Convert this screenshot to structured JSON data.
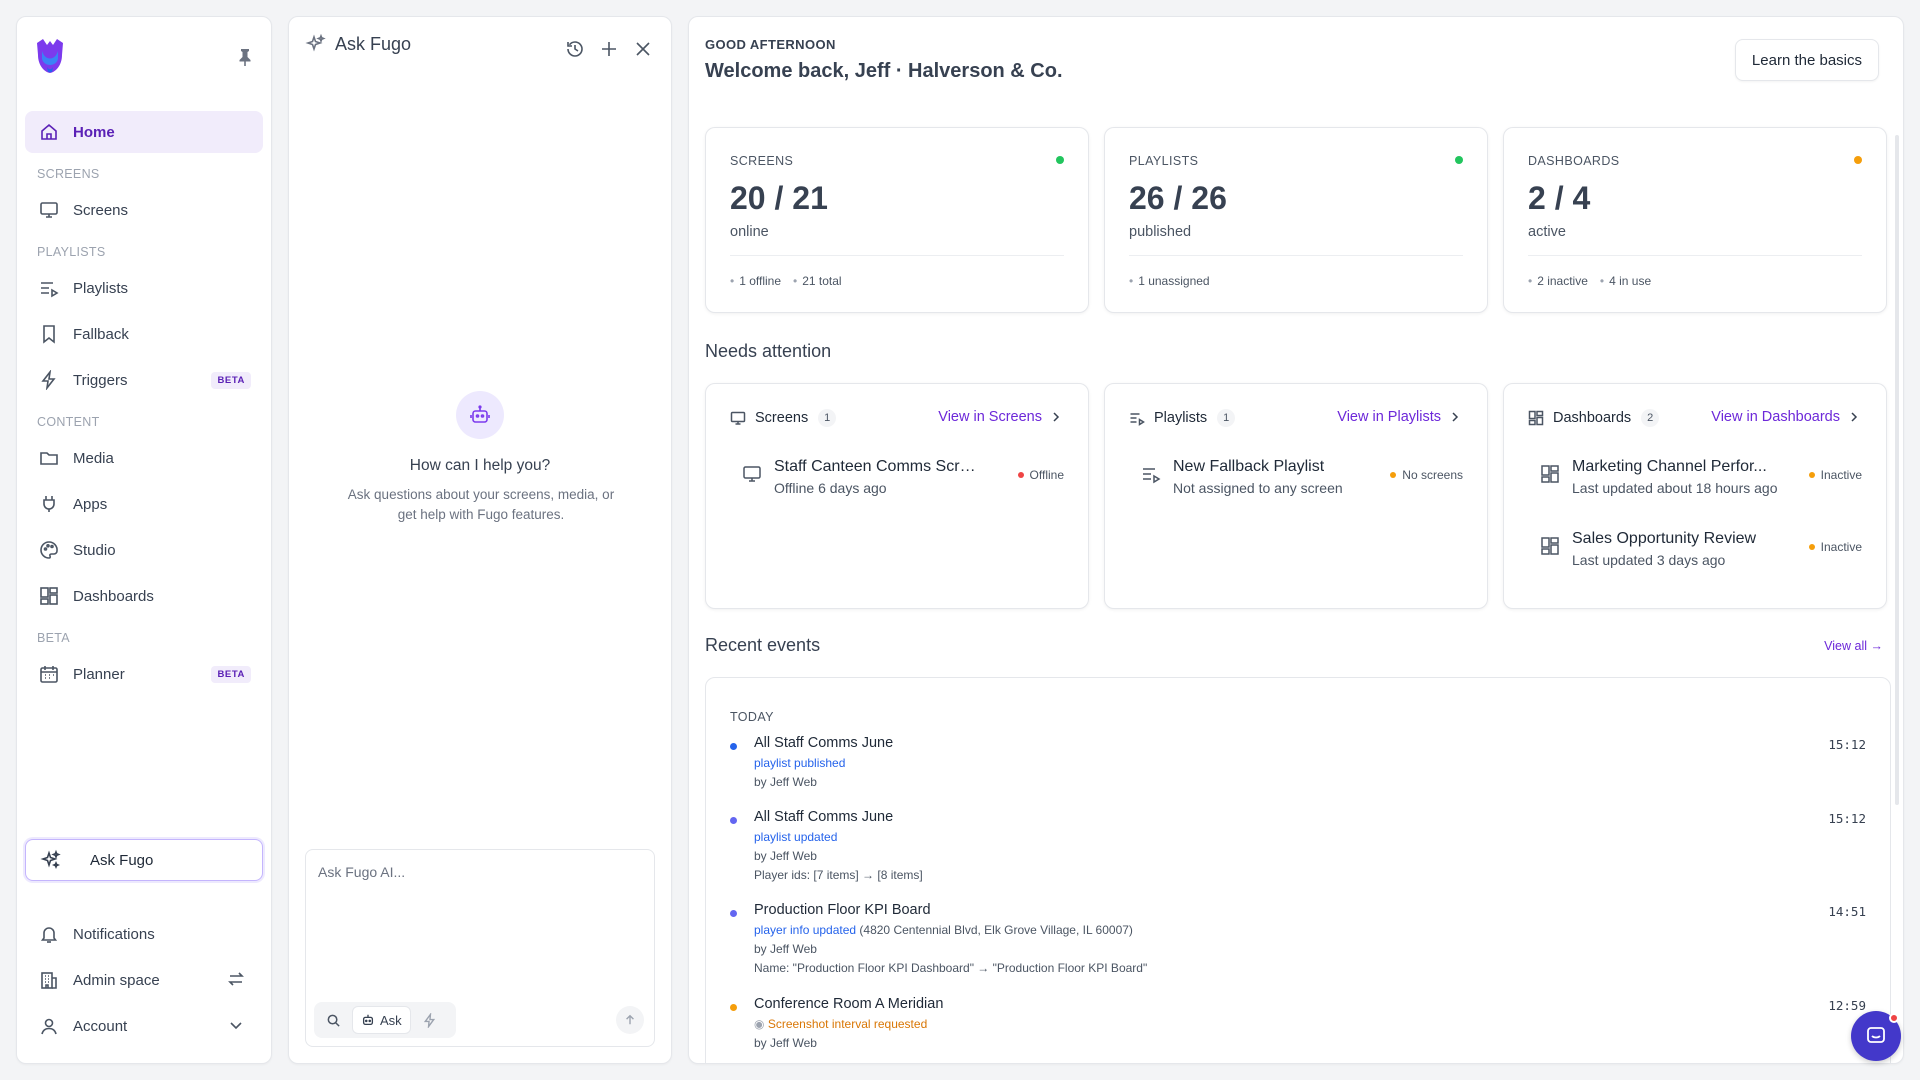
{
  "sidebar": {
    "nav": {
      "home": "Home",
      "screens_section": "SCREENS",
      "screens": "Screens",
      "playlists_section": "PLAYLISTS",
      "playlists": "Playlists",
      "fallback": "Fallback",
      "triggers": "Triggers",
      "content_section": "CONTENT",
      "media": "Media",
      "apps": "Apps",
      "studio": "Studio",
      "dashboards": "Dashboards",
      "beta_section": "BETA",
      "planner": "Planner",
      "beta_badge": "BETA"
    },
    "ask_fugo": "Ask Fugo",
    "bottom": {
      "notifications": "Notifications",
      "admin_space": "Admin space",
      "account": "Account"
    }
  },
  "ask_panel": {
    "title": "Ask Fugo",
    "empty_title": "How can I help you?",
    "empty_subtitle": "Ask questions about your screens, media, or get help with Fugo features.",
    "input_placeholder": "Ask Fugo AI...",
    "mode_label": "Ask"
  },
  "header": {
    "greeting": "GOOD AFTERNOON",
    "welcome": "Welcome back, Jeff · Halverson & Co.",
    "learn_button": "Learn the basics"
  },
  "stats": [
    {
      "label": "SCREENS",
      "value": "20 / 21",
      "sub": "online",
      "meta": [
        "1 offline",
        "21 total"
      ],
      "status_color": "#22c55e"
    },
    {
      "label": "PLAYLISTS",
      "value": "26 / 26",
      "sub": "published",
      "meta": [
        "1 unassigned"
      ],
      "status_color": "#22c55e"
    },
    {
      "label": "DASHBOARDS",
      "value": "2 / 4",
      "sub": "active",
      "meta": [
        "2 inactive",
        "4 in use"
      ],
      "status_color": "#f59e0b"
    }
  ],
  "attention": {
    "title": "Needs attention",
    "cards": [
      {
        "title": "Screens",
        "count": "1",
        "link": "View in Screens",
        "items": [
          {
            "title": "Staff Canteen Comms Screen",
            "sub": "Offline 6 days ago",
            "status": "Offline",
            "status_color": "#ef4444"
          }
        ]
      },
      {
        "title": "Playlists",
        "count": "1",
        "link": "View in Playlists",
        "items": [
          {
            "title": "New Fallback Playlist",
            "sub": "Not assigned to any screen",
            "status": "No screens",
            "status_color": "#f59e0b"
          }
        ]
      },
      {
        "title": "Dashboards",
        "count": "2",
        "link": "View in Dashboards",
        "items": [
          {
            "title": "Marketing Channel Perfor...",
            "sub": "Last updated about 18 hours ago",
            "status": "Inactive",
            "status_color": "#f59e0b"
          },
          {
            "title": "Sales Opportunity Review",
            "sub": "Last updated 3 days ago",
            "status": "Inactive",
            "status_color": "#f59e0b"
          }
        ]
      }
    ]
  },
  "events": {
    "title": "Recent events",
    "view_all": "View all →",
    "day": "TODAY",
    "items": [
      {
        "title": "All Staff Comms June",
        "action": "playlist published",
        "by": "by Jeff Web",
        "time": "15:12",
        "dot": "#2563eb"
      },
      {
        "title": "All Staff Comms June",
        "action": "playlist updated",
        "by": "by Jeff Web",
        "detail": "Player ids: [7 items] → [8 items]",
        "time": "15:12",
        "dot": "#6366f1"
      },
      {
        "title": "Production Floor KPI Board",
        "action": "player info updated",
        "action_extra": " (4820 Centennial Blvd, Elk Grove Village, IL 60007)",
        "by": "by Jeff Web",
        "detail": "Name: \"Production Floor KPI Dashboard\" → \"Production Floor KPI Board\"",
        "time": "14:51",
        "dot": "#6366f1"
      },
      {
        "title": "Conference Room A Meridian",
        "action": "Screenshot interval requested",
        "by": "by Jeff Web",
        "time": "12:59",
        "dot": "#f59e0b"
      }
    ]
  }
}
